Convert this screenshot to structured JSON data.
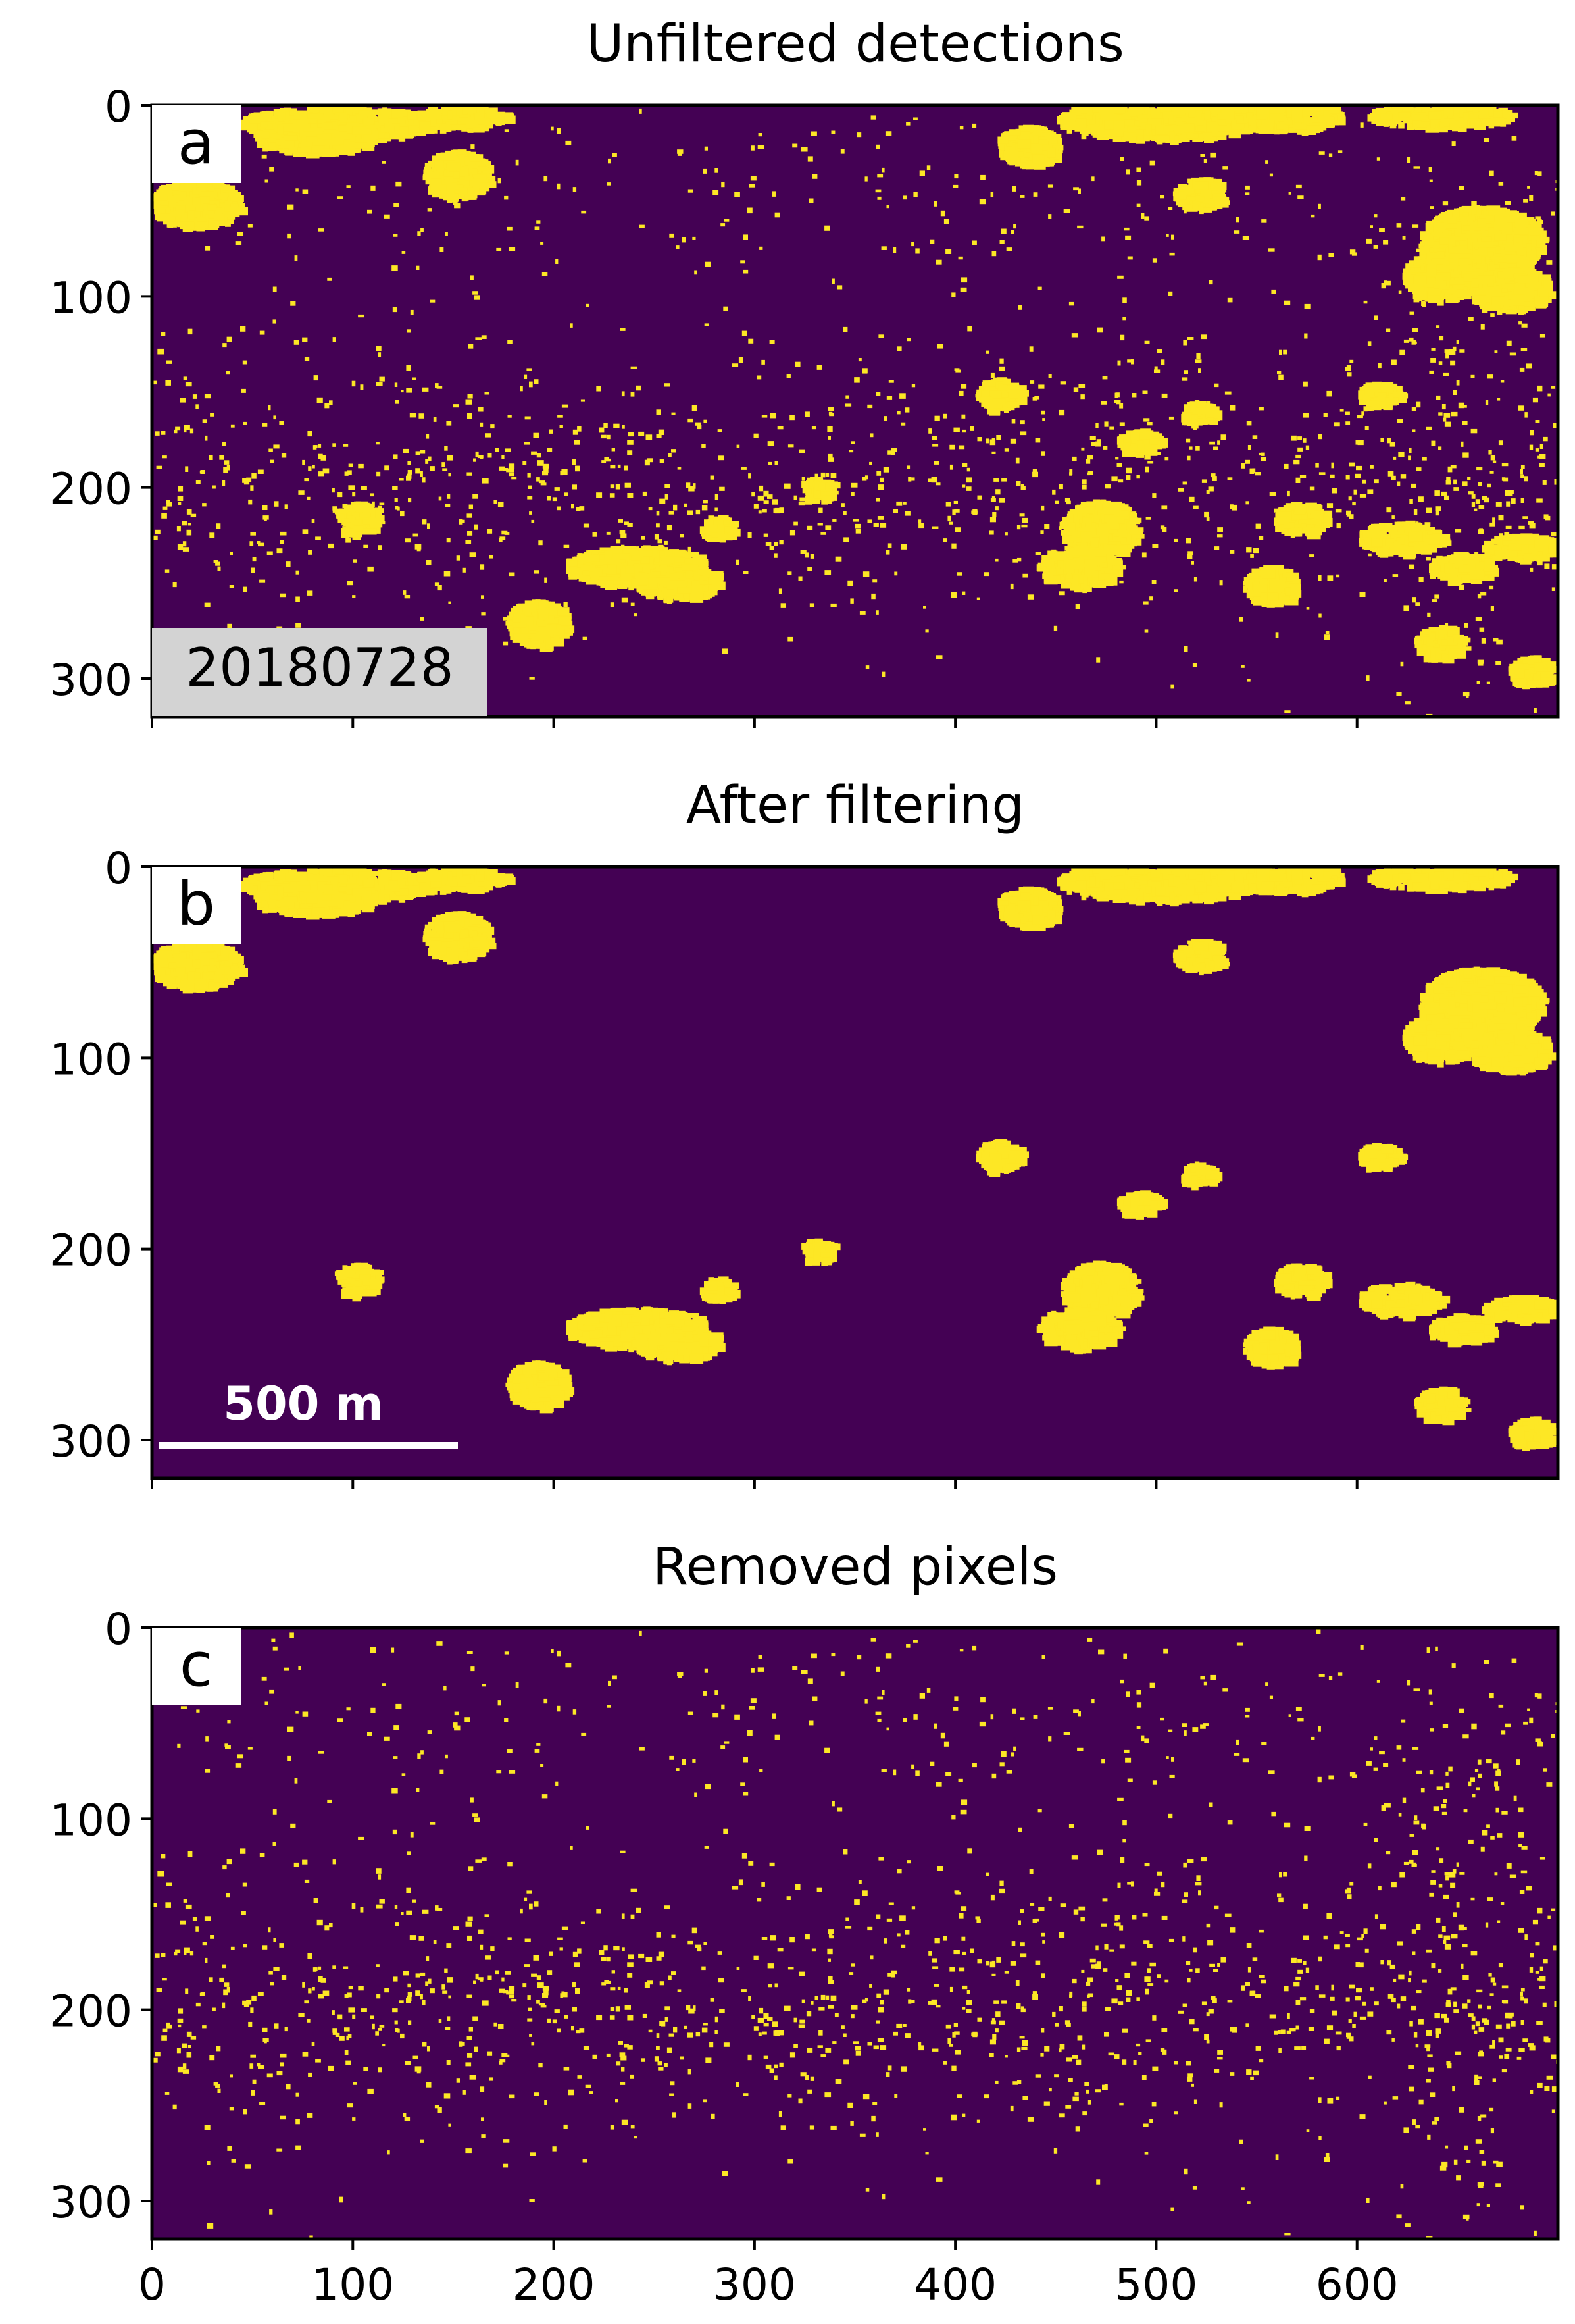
{
  "figure": {
    "colors": {
      "background": "#440154",
      "detection": "#fde725",
      "axis": "#000000",
      "date_box": "#d3d3d3",
      "label_box": "#ffffff",
      "scalebar": "#ffffff"
    }
  },
  "chart_data": [
    {
      "panel": "a",
      "type": "heatmap",
      "title": "Unfiltered detections",
      "date_label": "20180728",
      "xlim": [
        0,
        700
      ],
      "ylim": [
        320,
        0
      ],
      "x_ticks": [
        0,
        100,
        200,
        300,
        400,
        500,
        600
      ],
      "y_ticks": [
        0,
        100,
        200,
        300
      ],
      "x_tick_labels_shown": false,
      "values": "binary mask: 1 = detection (yellow), 0 = background (purple)",
      "features": [
        {
          "name": "top-left blob",
          "x": [
            0,
            40
          ],
          "y": [
            40,
            60
          ]
        },
        {
          "name": "top band",
          "x": [
            45,
            120
          ],
          "y": [
            0,
            20
          ]
        },
        {
          "name": "top-right band",
          "x": [
            460,
            700
          ],
          "y": [
            0,
            20
          ]
        },
        {
          "name": "dense band",
          "x": [
            0,
            700
          ],
          "y": [
            140,
            260
          ]
        },
        {
          "name": "right cluster",
          "x": [
            600,
            700
          ],
          "y": [
            40,
            200
          ]
        }
      ]
    },
    {
      "panel": "b",
      "type": "heatmap",
      "title": "After filtering",
      "scalebar_label": "500 m",
      "xlim": [
        0,
        700
      ],
      "ylim": [
        320,
        0
      ],
      "x_ticks": [
        0,
        100,
        200,
        300,
        400,
        500,
        600
      ],
      "y_ticks": [
        0,
        100,
        200,
        300
      ],
      "x_tick_labels_shown": false,
      "values": "binary mask: only large connected detection clusters retained"
    },
    {
      "panel": "c",
      "type": "heatmap",
      "title": "Removed pixels",
      "xlim": [
        0,
        700
      ],
      "ylim": [
        320,
        0
      ],
      "x_ticks": [
        0,
        100,
        200,
        300,
        400,
        500,
        600
      ],
      "y_ticks": [
        0,
        100,
        200,
        300
      ],
      "x_tick_labels_shown": true,
      "values": "binary mask: small isolated detections removed by the filter"
    }
  ]
}
